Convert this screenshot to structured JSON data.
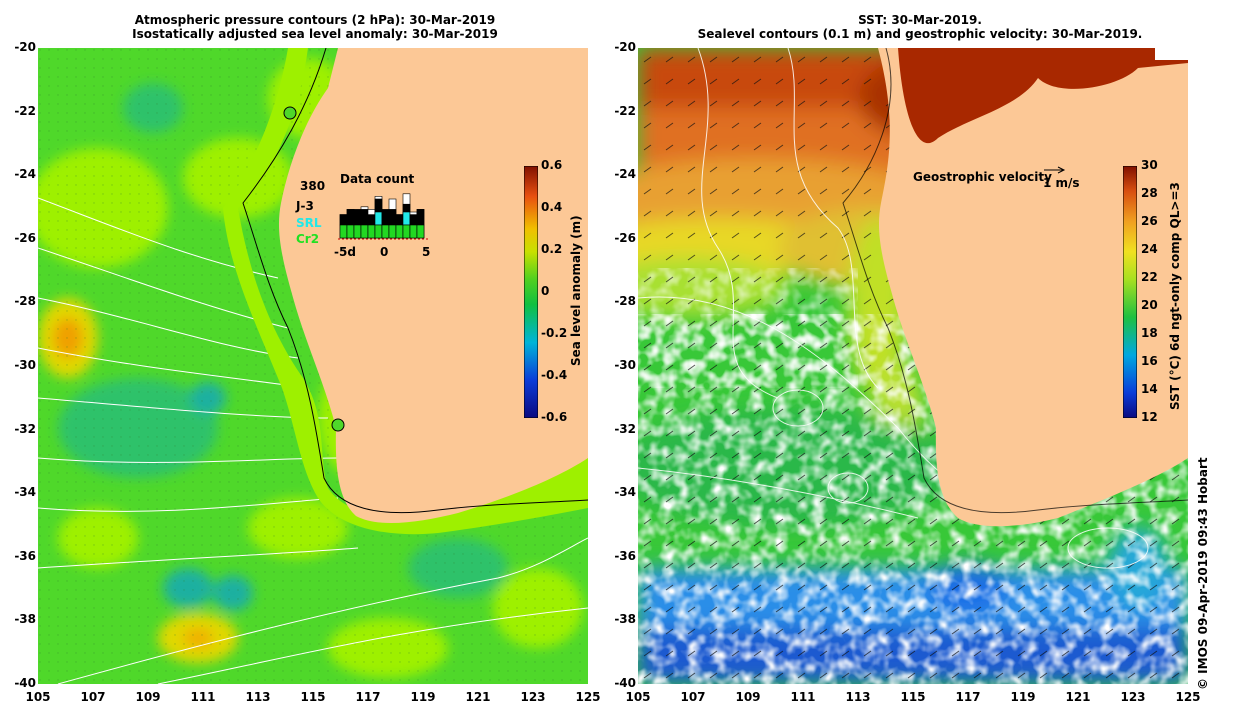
{
  "left_panel": {
    "title_line1": "Atmospheric pressure contours (2 hPa): 30-Mar-2019",
    "title_line2": "Isostatically adjusted sea level anomaly: 30-Mar-2019",
    "colorbar": {
      "label": "Sea level anomaly (m)",
      "ticks": [
        "0.6",
        "0.4",
        "0.2",
        "0",
        "-0.2",
        "-0.4",
        "-0.6"
      ],
      "range": [
        -0.6,
        0.6
      ]
    },
    "data_count": {
      "title": "Data count",
      "max_label": "380",
      "sat_j3": "J-3",
      "sat_srl": "SRL",
      "sat_cr2": "Cr2",
      "ticks": [
        "-5d",
        "0",
        "5"
      ],
      "bars_total": [
        0.45,
        0.55,
        0.5,
        0.6,
        0.55,
        0.8,
        0.5,
        0.75,
        0.45,
        0.85,
        0.5,
        0.55
      ],
      "bars_j3": [
        0.2,
        0.3,
        0.3,
        0.3,
        0.2,
        0.5,
        0.3,
        0.3,
        0.2,
        0.4,
        0.2,
        0.3
      ],
      "bars_srl": [
        0,
        0,
        0,
        0,
        0,
        0.25,
        0,
        0,
        0,
        0.25,
        0,
        0
      ],
      "bars_cr2": [
        0.25,
        0.25,
        0.25,
        0.25,
        0.25,
        0.25,
        0.25,
        0.25,
        0.25,
        0.25,
        0.25,
        0.25
      ]
    }
  },
  "right_panel": {
    "title_line1": "SST: 30-Mar-2019.",
    "title_line2": "Sealevel contours (0.1 m) and geostrophic velocity: 30-Mar-2019.",
    "velocity_label": "Geostrophic velocity",
    "velocity_scale": "1 m/s",
    "colorbar": {
      "label": "SST (°C) 6d ngt-only comp QL>=3",
      "ticks": [
        "30",
        "28",
        "26",
        "24",
        "22",
        "20",
        "18",
        "16",
        "14",
        "12"
      ],
      "range": [
        12,
        30
      ]
    }
  },
  "axes": {
    "lat_ticks": [
      "-20",
      "-22",
      "-24",
      "-26",
      "-28",
      "-30",
      "-32",
      "-34",
      "-36",
      "-38",
      "-40"
    ],
    "lon_ticks": [
      "105",
      "107",
      "109",
      "111",
      "113",
      "115",
      "117",
      "119",
      "121",
      "123",
      "125"
    ],
    "lon_range": [
      105,
      125
    ],
    "lat_range": [
      -40,
      -20
    ]
  },
  "credit": "© IMOS 09-Apr-2019 09:43 Hobart",
  "colors": {
    "land": "#fcc896",
    "sla_green": "#4fd82a",
    "sla_bright": "#9ef000",
    "sla_yellow": "#e0e000",
    "sst_red": "#a81e00",
    "sst_orange": "#e8781e",
    "sst_yellow": "#f0e020",
    "sst_green": "#38c838",
    "sst_blue": "#1e6ee6"
  }
}
